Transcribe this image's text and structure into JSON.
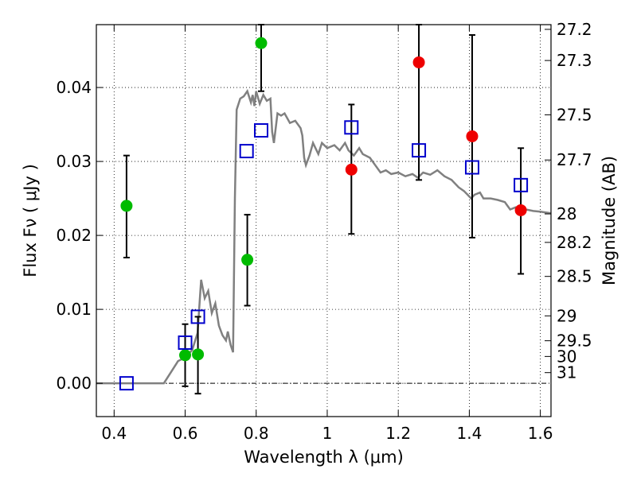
{
  "chart_data": {
    "type": "scatter",
    "xlabel": "Wavelength  λ (μm)",
    "ylabel": "Flux  Fν  ( μJy )",
    "ylabel_right": "Magnitude (AB)",
    "xlim": [
      0.35,
      1.63
    ],
    "ylim": [
      -0.0045,
      0.0485
    ],
    "x_ticks": [
      {
        "value": 0.4,
        "label": "0.4"
      },
      {
        "value": 0.6,
        "label": "0.6"
      },
      {
        "value": 0.8,
        "label": "0.8"
      },
      {
        "value": 1.0,
        "label": "1"
      },
      {
        "value": 1.2,
        "label": "1.2"
      },
      {
        "value": 1.4,
        "label": "1.4"
      },
      {
        "value": 1.6,
        "label": "1.6"
      }
    ],
    "y_ticks": [
      {
        "value": 0.0,
        "label": "0.00"
      },
      {
        "value": 0.01,
        "label": "0.01"
      },
      {
        "value": 0.02,
        "label": "0.02"
      },
      {
        "value": 0.03,
        "label": "0.03"
      },
      {
        "value": 0.04,
        "label": "0.04"
      }
    ],
    "magnitude_ticks": [
      {
        "value": 27.2,
        "label": "27.2"
      },
      {
        "value": 27.3,
        "label": "27.3"
      },
      {
        "value": 27.5,
        "label": "27.5"
      },
      {
        "value": 27.7,
        "label": "27.7"
      },
      {
        "value": 28.0,
        "label": "28"
      },
      {
        "value": 28.2,
        "label": "28.2"
      },
      {
        "value": 28.5,
        "label": "28.5"
      },
      {
        "value": 29.0,
        "label": "29"
      },
      {
        "value": 29.5,
        "label": "29.5"
      },
      {
        "value": 30.0,
        "label": "30"
      },
      {
        "value": 31.0,
        "label": "31"
      }
    ],
    "grid": true,
    "colors": {
      "model_line": "#808080",
      "optical_points": "#00bb00",
      "ir_points": "#ee0000",
      "model_squares": "#0000cc",
      "error_bars": "#000000",
      "grid": "#000000"
    },
    "series": [
      {
        "type": "line",
        "points": [
          [
            0.35,
            0.0
          ],
          [
            0.54,
            0.0
          ],
          [
            0.56,
            0.0015
          ],
          [
            0.58,
            0.003
          ],
          [
            0.6,
            0.0035
          ],
          [
            0.62,
            0.0045
          ],
          [
            0.635,
            0.0068
          ],
          [
            0.645,
            0.014
          ],
          [
            0.655,
            0.0115
          ],
          [
            0.665,
            0.0125
          ],
          [
            0.675,
            0.0095
          ],
          [
            0.685,
            0.0108
          ],
          [
            0.695,
            0.0078
          ],
          [
            0.705,
            0.0065
          ],
          [
            0.715,
            0.0058
          ],
          [
            0.72,
            0.007
          ],
          [
            0.728,
            0.0052
          ],
          [
            0.735,
            0.0042
          ],
          [
            0.74,
            0.025
          ],
          [
            0.745,
            0.037
          ],
          [
            0.755,
            0.0385
          ],
          [
            0.765,
            0.0388
          ],
          [
            0.775,
            0.0395
          ],
          [
            0.785,
            0.038
          ],
          [
            0.79,
            0.039
          ],
          [
            0.795,
            0.0375
          ],
          [
            0.8,
            0.0395
          ],
          [
            0.81,
            0.0378
          ],
          [
            0.82,
            0.039
          ],
          [
            0.83,
            0.0382
          ],
          [
            0.84,
            0.0385
          ],
          [
            0.845,
            0.034
          ],
          [
            0.85,
            0.0325
          ],
          [
            0.86,
            0.0365
          ],
          [
            0.87,
            0.0362
          ],
          [
            0.88,
            0.0365
          ],
          [
            0.895,
            0.0352
          ],
          [
            0.91,
            0.0355
          ],
          [
            0.925,
            0.0345
          ],
          [
            0.93,
            0.0335
          ],
          [
            0.935,
            0.0305
          ],
          [
            0.94,
            0.0295
          ],
          [
            0.95,
            0.0308
          ],
          [
            0.96,
            0.0325
          ],
          [
            0.975,
            0.031
          ],
          [
            0.985,
            0.0325
          ],
          [
            1.0,
            0.0318
          ],
          [
            1.02,
            0.0322
          ],
          [
            1.035,
            0.0315
          ],
          [
            1.05,
            0.0325
          ],
          [
            1.06,
            0.0315
          ],
          [
            1.075,
            0.0308
          ],
          [
            1.09,
            0.0318
          ],
          [
            1.1,
            0.031
          ],
          [
            1.12,
            0.0305
          ],
          [
            1.135,
            0.0295
          ],
          [
            1.15,
            0.0285
          ],
          [
            1.165,
            0.0288
          ],
          [
            1.18,
            0.0283
          ],
          [
            1.2,
            0.0285
          ],
          [
            1.22,
            0.028
          ],
          [
            1.24,
            0.0283
          ],
          [
            1.255,
            0.0278
          ],
          [
            1.27,
            0.0285
          ],
          [
            1.29,
            0.0282
          ],
          [
            1.31,
            0.0288
          ],
          [
            1.33,
            0.028
          ],
          [
            1.35,
            0.0275
          ],
          [
            1.37,
            0.0265
          ],
          [
            1.385,
            0.026
          ],
          [
            1.395,
            0.0255
          ],
          [
            1.405,
            0.025
          ],
          [
            1.415,
            0.0255
          ],
          [
            1.43,
            0.0258
          ],
          [
            1.44,
            0.025
          ],
          [
            1.46,
            0.025
          ],
          [
            1.48,
            0.0248
          ],
          [
            1.5,
            0.0245
          ],
          [
            1.515,
            0.0235
          ],
          [
            1.53,
            0.0238
          ],
          [
            1.545,
            0.0232
          ],
          [
            1.56,
            0.0235
          ],
          [
            1.58,
            0.0233
          ],
          [
            1.6,
            0.0232
          ],
          [
            1.63,
            0.023
          ]
        ]
      },
      {
        "type": "errorbar",
        "points": [
          {
            "x": 0.435,
            "y": 0.024,
            "ylo": 0.017,
            "yhi": 0.0308
          },
          {
            "x": 0.6,
            "y": 0.0038,
            "ylo": -0.0004,
            "yhi": 0.008
          },
          {
            "x": 0.636,
            "y": 0.0039,
            "ylo": -0.0014,
            "yhi": 0.009
          },
          {
            "x": 0.775,
            "y": 0.0167,
            "ylo": 0.0105,
            "yhi": 0.0228
          },
          {
            "x": 0.814,
            "y": 0.046,
            "ylo": 0.0395,
            "yhi": 0.0485
          }
        ]
      },
      {
        "type": "errorbar",
        "points": [
          {
            "x": 1.068,
            "y": 0.0289,
            "ylo": 0.0202,
            "yhi": 0.0377
          },
          {
            "x": 1.258,
            "y": 0.0434,
            "ylo": 0.0275,
            "yhi": 0.0485
          },
          {
            "x": 1.408,
            "y": 0.0334,
            "ylo": 0.0197,
            "yhi": 0.0471
          },
          {
            "x": 1.545,
            "y": 0.0234,
            "ylo": 0.0148,
            "yhi": 0.0318
          }
        ]
      },
      {
        "type": "scatter",
        "marker": "open-square",
        "points": [
          [
            0.435,
            0.0
          ],
          [
            0.6,
            0.0055
          ],
          [
            0.636,
            0.009
          ],
          [
            0.773,
            0.0314
          ],
          [
            0.814,
            0.0342
          ],
          [
            1.068,
            0.0346
          ],
          [
            1.258,
            0.0315
          ],
          [
            1.408,
            0.0292
          ],
          [
            1.545,
            0.0268
          ]
        ]
      }
    ]
  }
}
